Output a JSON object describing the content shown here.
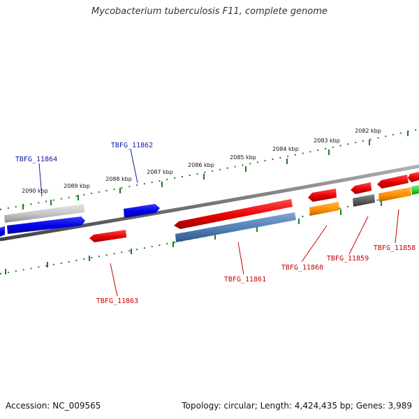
{
  "title": "Mycobacterium tuberculosis F11, complete genome",
  "footer": {
    "accession": "Accession: NC_009565",
    "stats": "Topology: circular; Length: 4,424,435 bp; Genes: 3,989"
  },
  "colors": {
    "backbone": "#777777",
    "ticks": "#1f7a1f",
    "label_blue": "#0a1aa0",
    "label_red": "#c40000"
  },
  "scale": {
    "labels": [
      "2090 kbp",
      "2089 kbp",
      "2088 kbp",
      "2087 kbp",
      "2086 kbp",
      "2085 kbp",
      "2084 kbp",
      "2083 kbp",
      "2082 kbp"
    ]
  },
  "genes": [
    {
      "name": "TBFG_11864",
      "label_color": "blue"
    },
    {
      "name": "TBFG_11862",
      "label_color": "blue"
    },
    {
      "name": "TBFG_11863",
      "label_color": "red"
    },
    {
      "name": "TBFG_11861",
      "label_color": "red"
    },
    {
      "name": "TBFG_11860",
      "label_color": "red"
    },
    {
      "name": "TBFG_11859",
      "label_color": "red"
    },
    {
      "name": "TBFG_11858",
      "label_color": "red"
    }
  ]
}
